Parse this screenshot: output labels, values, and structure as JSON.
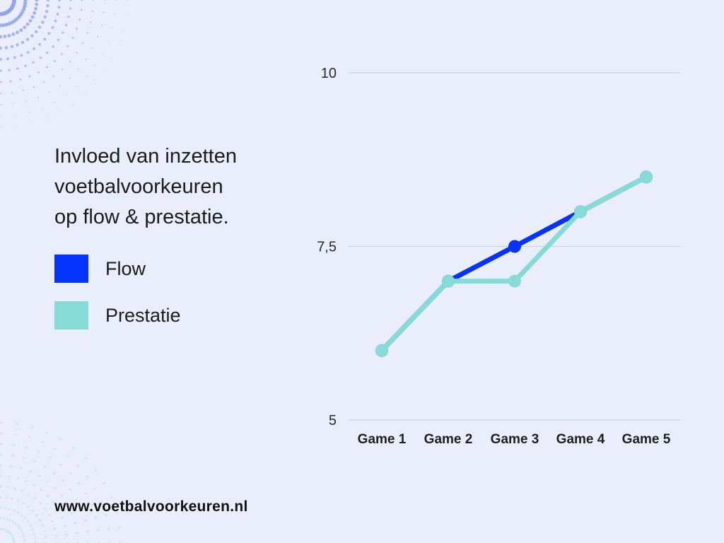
{
  "header": {
    "title_lines": [
      "Invloed van inzetten",
      "voetbalvoorkeuren",
      "op flow & prestatie."
    ]
  },
  "legend": [
    {
      "label": "Flow",
      "color": "#0433ff"
    },
    {
      "label": "Prestatie",
      "color": "#86dbd6"
    }
  ],
  "footer": {
    "url": "www.voetbalvoorkeuren.nl"
  },
  "colors": {
    "background": "#eaeefc",
    "gridline": "#c7cbe0",
    "dots_top": "#8ea3ee",
    "dots_bottom": "#cfe6ef"
  },
  "chart_data": {
    "type": "line",
    "title": "Invloed van inzetten voetbalvoorkeuren op flow & prestatie.",
    "categories": [
      "Game 1",
      "Game 2",
      "Game 3",
      "Game 4",
      "Game 5"
    ],
    "series": [
      {
        "name": "Flow",
        "color": "#0433ff",
        "values": [
          6,
          7,
          7.5,
          8,
          8.5
        ]
      },
      {
        "name": "Prestatie",
        "color": "#86dbd6",
        "values": [
          6,
          7,
          7,
          8,
          8.5
        ]
      }
    ],
    "ylim": [
      5,
      10
    ],
    "yticks": [
      {
        "value": 5,
        "label": "5"
      },
      {
        "value": 7.5,
        "label": "7,5"
      },
      {
        "value": 10,
        "label": "10"
      }
    ],
    "grid": true,
    "legend_position": "left",
    "xlabel": "",
    "ylabel": ""
  }
}
